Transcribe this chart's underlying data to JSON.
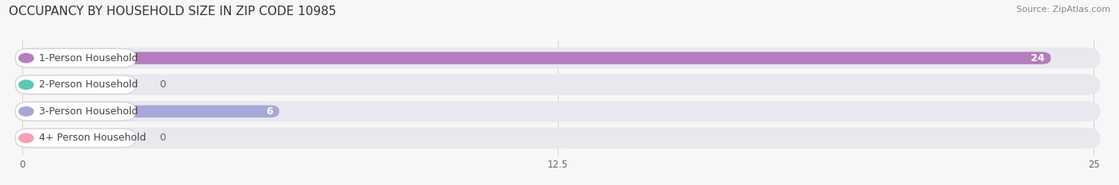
{
  "title": "OCCUPANCY BY HOUSEHOLD SIZE IN ZIP CODE 10985",
  "source": "Source: ZipAtlas.com",
  "categories": [
    "1-Person Household",
    "2-Person Household",
    "3-Person Household",
    "4+ Person Household"
  ],
  "values": [
    24,
    0,
    6,
    0
  ],
  "bar_colors": [
    "#b57cbe",
    "#5ec8b8",
    "#a8a8d8",
    "#f4a0b4"
  ],
  "background_color": "#f7f7f7",
  "row_bg_color": "#e8e8ee",
  "row_bg_color_alt": "#ededf2",
  "xlim": [
    0,
    25
  ],
  "xticks": [
    0,
    12.5,
    25
  ],
  "title_fontsize": 11,
  "source_fontsize": 8,
  "bar_fontsize": 9,
  "label_fontsize": 9
}
